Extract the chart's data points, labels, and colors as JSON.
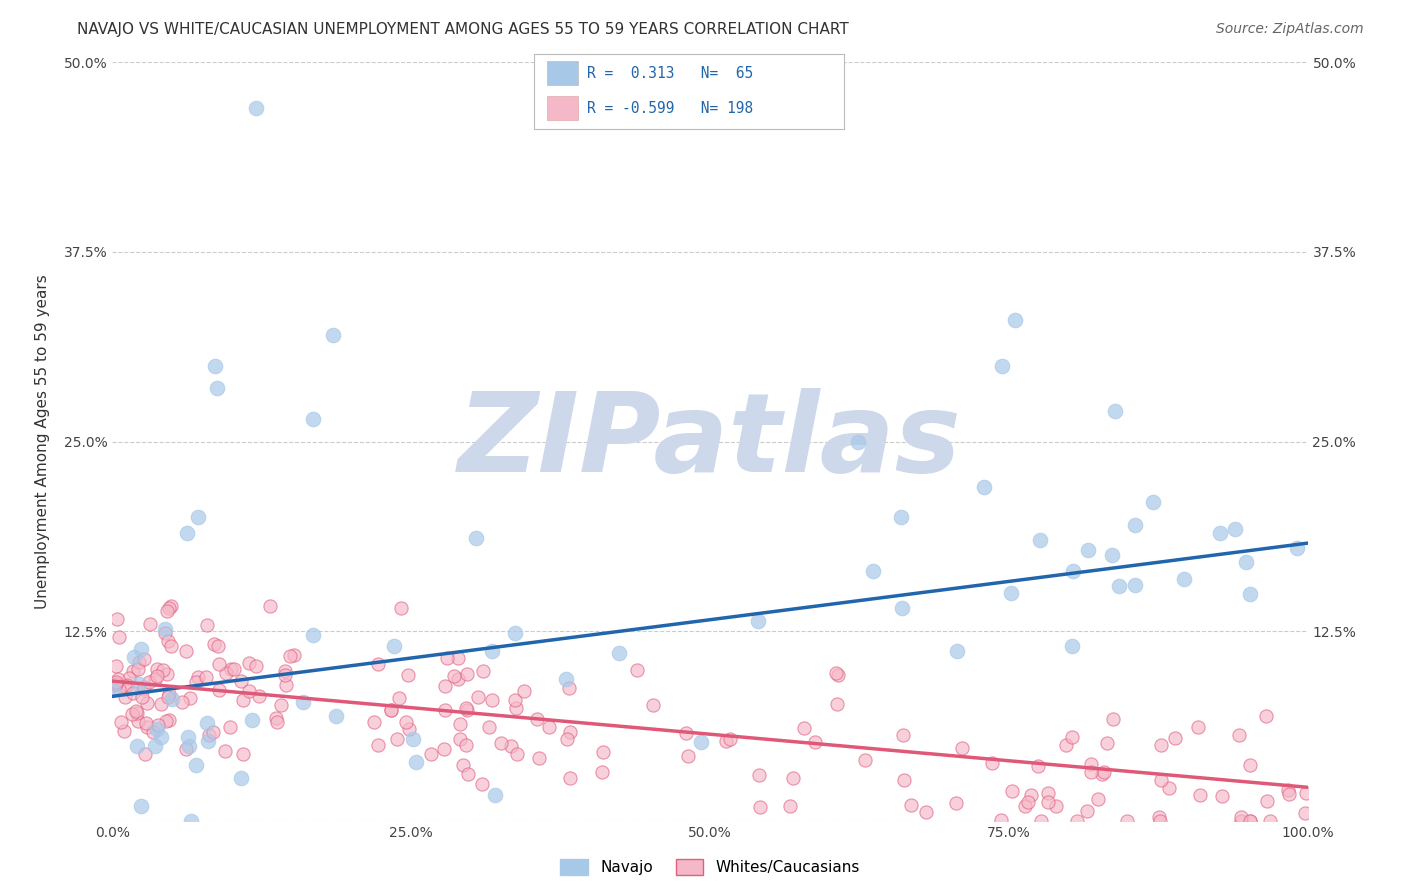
{
  "title": "NAVAJO VS WHITE/CAUCASIAN UNEMPLOYMENT AMONG AGES 55 TO 59 YEARS CORRELATION CHART",
  "source": "Source: ZipAtlas.com",
  "ylabel": "Unemployment Among Ages 55 to 59 years",
  "xlim": [
    0,
    1.0
  ],
  "ylim": [
    0,
    0.5
  ],
  "xticks": [
    0.0,
    0.25,
    0.5,
    0.75,
    1.0
  ],
  "xtick_labels": [
    "0.0%",
    "25.0%",
    "50.0%",
    "75.0%",
    "100.0%"
  ],
  "yticks": [
    0.0,
    0.125,
    0.25,
    0.375,
    0.5
  ],
  "ytick_labels_left": [
    "",
    "12.5%",
    "25.0%",
    "37.5%",
    "50.0%"
  ],
  "ytick_labels_right": [
    "",
    "12.5%",
    "25.0%",
    "37.5%",
    "50.0%"
  ],
  "navajo_R": 0.313,
  "navajo_N": 65,
  "white_R": -0.599,
  "white_N": 198,
  "navajo_color": "#a8c8e8",
  "navajo_edge_color": "#a8c8e8",
  "navajo_line_color": "#2166ac",
  "white_color": "#f5b8c8",
  "white_edge_color": "#e06080",
  "white_line_color": "#e05878",
  "legend_R_color": "#2166ac",
  "legend_bg": "#ffffff",
  "legend_border": "#bbbbbb",
  "background_color": "#ffffff",
  "watermark_text": "ZIPatlas",
  "watermark_color": "#cdd8ea",
  "grid_color": "#cccccc",
  "title_fontsize": 11,
  "source_fontsize": 10,
  "axis_label_fontsize": 11,
  "tick_fontsize": 10,
  "nav_line_y0": 0.082,
  "nav_line_y1": 0.183,
  "white_line_y0": 0.092,
  "white_line_y1": 0.022
}
